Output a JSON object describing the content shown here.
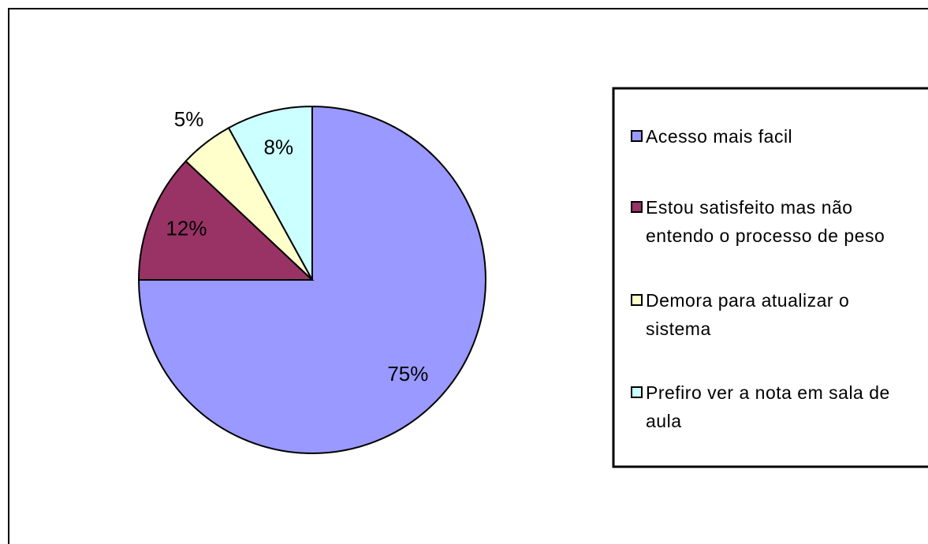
{
  "chart_data": {
    "type": "pie",
    "categories": [
      "Acesso mais facil",
      "Estou satisfeito mas não entendo o processo de peso",
      "Demora para atualizar  o sistema",
      "Prefiro ver a nota em sala de aula"
    ],
    "values": [
      75,
      12,
      5,
      8
    ],
    "value_labels": [
      "75%",
      "12%",
      "5%",
      "8%"
    ],
    "colors": [
      "#9999ff",
      "#993366",
      "#ffffcc",
      "#ccffff"
    ],
    "legend": "right"
  }
}
